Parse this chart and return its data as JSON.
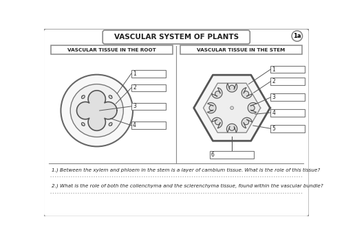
{
  "title": "VASCULAR SYSTEM OF PLANTS",
  "badge": "1a",
  "left_panel_title": "VASCULAR TISSUE IN THE ROOT",
  "right_panel_title": "VASCULAR TISSUE IN THE STEM",
  "question1": "1.) Between the xylem and phloem in the stem is a layer of cambium tissue. What is the role of this tissue?",
  "question2": "2.) What is the role of both the collenchyma and the sclerenchyma tissue, found within the vascular bundle?",
  "bg_color": "#ffffff",
  "border_color": "#888888",
  "text_color": "#222222"
}
